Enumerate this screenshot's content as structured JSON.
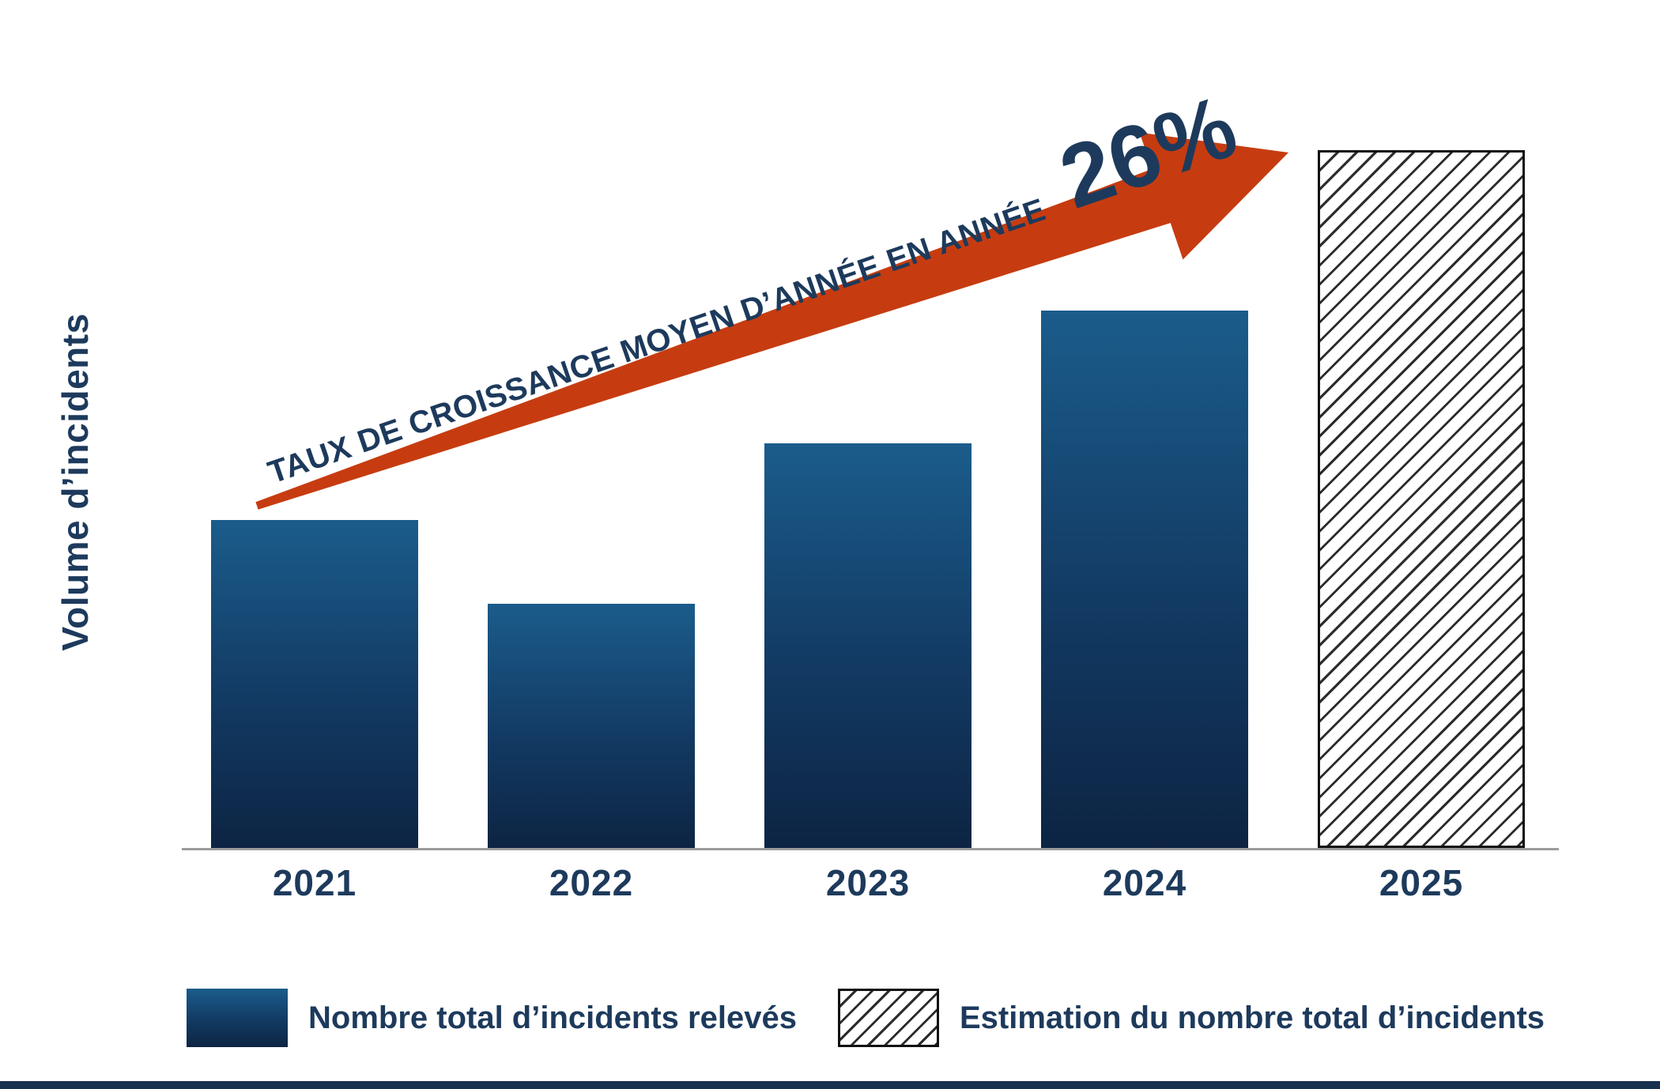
{
  "colors": {
    "navy_text": "#1d3a5c",
    "bar_gradient_top": "#1b5c8b",
    "bar_gradient_bottom": "#0d2443",
    "arrow": "#c63c10",
    "axis_line": "#9b9b9b",
    "hatch_line": "#2b2b2b",
    "footer_strip": "#17304d"
  },
  "chart_data": {
    "type": "bar",
    "title": "",
    "ylabel": "Volume d’incidents",
    "xlabel": "",
    "categories": [
      "2021",
      "2022",
      "2023",
      "2024",
      "2025"
    ],
    "values": [
      47,
      35,
      58,
      77,
      100
    ],
    "bar_styles": [
      "solid",
      "solid",
      "solid",
      "solid",
      "hatched"
    ],
    "ylim": [
      0,
      100
    ],
    "grid": false,
    "y_axis_ticks": "none",
    "legend_position": "bottom",
    "annotation": {
      "label": "TAUX DE CROISSANCE MOYEN D’ANNÉE EN ANNÉE",
      "value": "26%"
    },
    "legend": [
      {
        "style": "solid",
        "label": "Nombre total d’incidents relevés"
      },
      {
        "style": "hatched",
        "label": "Estimation du nombre total d’incidents"
      }
    ]
  }
}
